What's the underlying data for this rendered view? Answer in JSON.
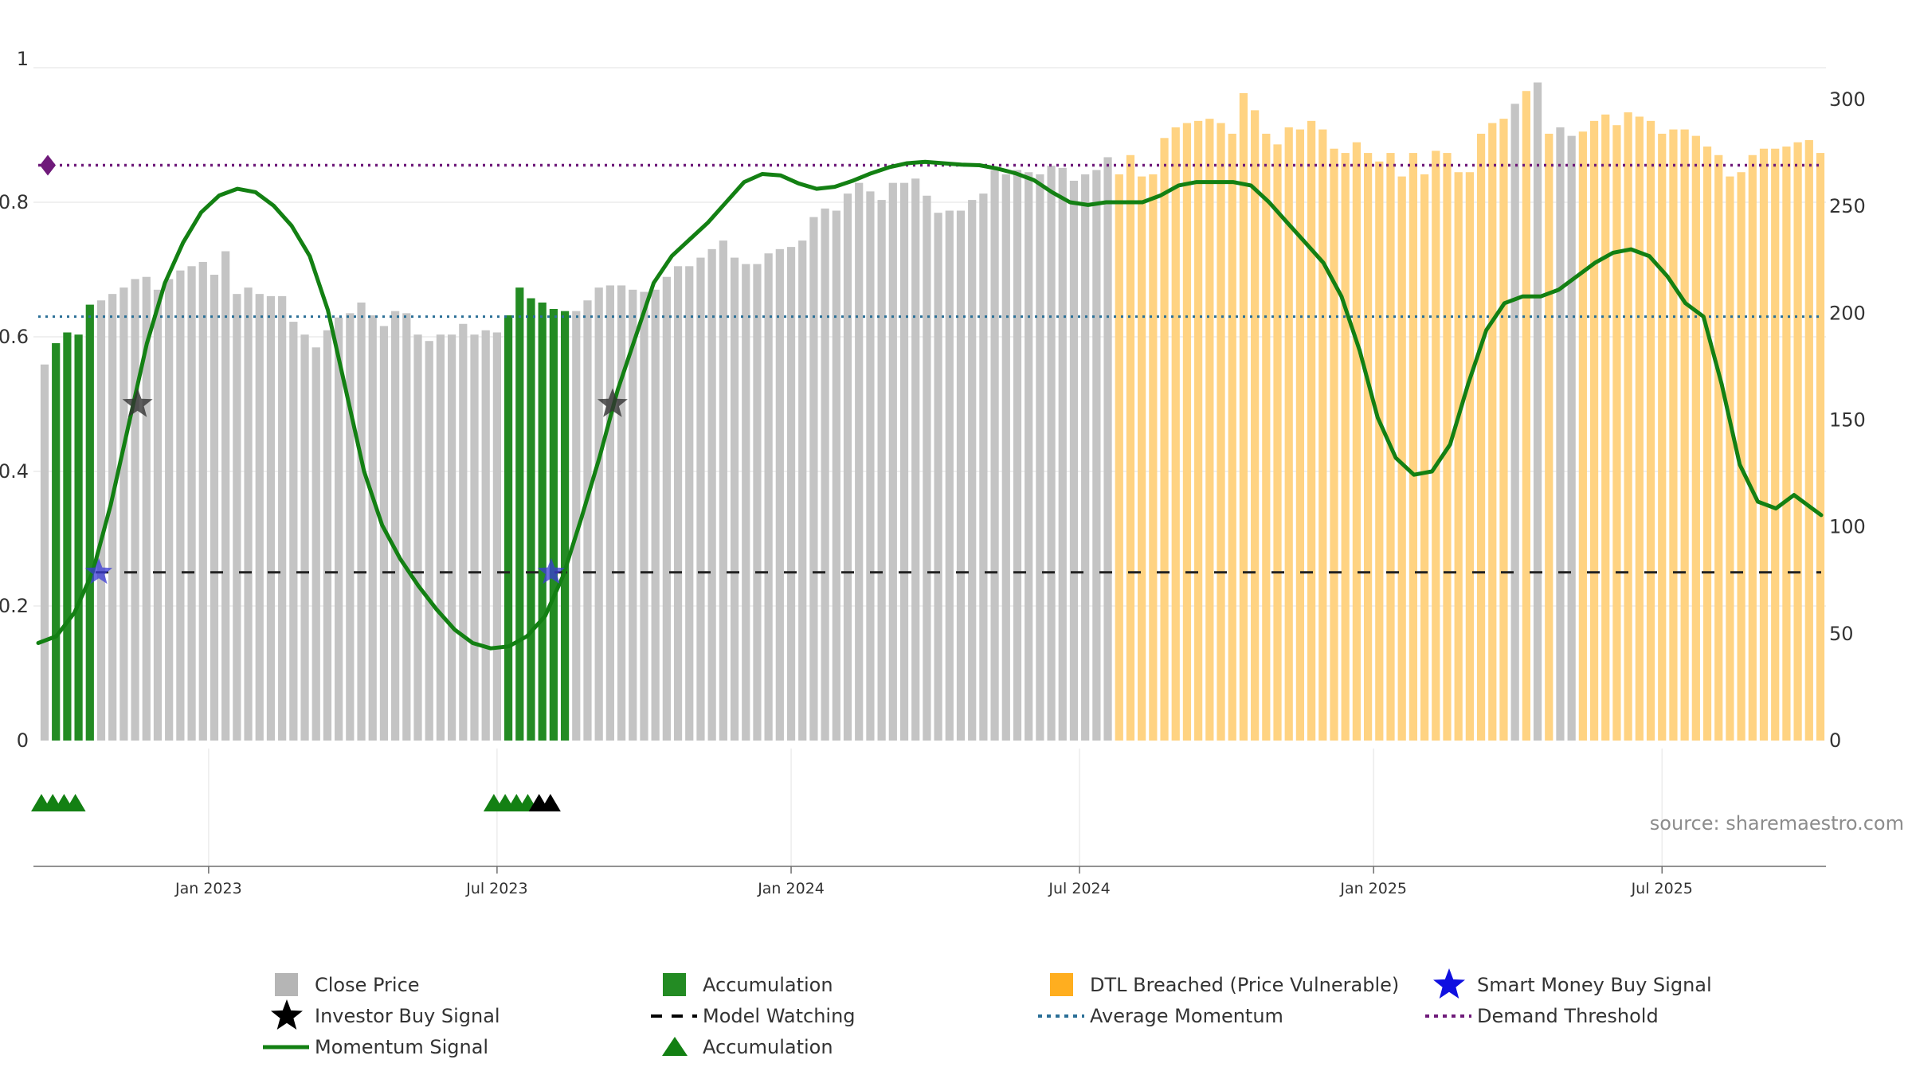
{
  "source": "source: sharemaestro.com",
  "colors": {
    "close": "#c4c4c4",
    "accumulation": "#238b23",
    "dtl": "#ffd382",
    "momentum": "#138013",
    "watching": "#222222",
    "average": "#2a6f97",
    "demand": "#6f1a7a",
    "smart": "#3b3bd6",
    "investor": "#333333"
  },
  "chart_data": {
    "type": "bar",
    "left_axis": {
      "ticks": [
        0,
        0.2,
        0.4,
        0.6,
        0.8,
        1
      ],
      "tick_labels": [
        "0",
        "0.2",
        "0.4",
        "0.6",
        "0.8",
        "1"
      ],
      "range": [
        0,
        1
      ]
    },
    "right_axis": {
      "ticks": [
        0,
        50,
        100,
        150,
        200,
        250,
        300
      ],
      "tick_labels": [
        "0",
        "50",
        "100",
        "150",
        "200",
        "250",
        "300"
      ],
      "range": [
        0,
        300
      ]
    },
    "x_axis": {
      "tick_labels": [
        "Jan 2023",
        "Jul 2023",
        "Jan 2024",
        "Jul 2024",
        "Jan 2025",
        "Jul 2025"
      ],
      "tick_week_index": [
        14.5,
        40,
        66,
        91.5,
        117.5,
        143
      ]
    },
    "close_prices": [
      176,
      186,
      191,
      190,
      204,
      206,
      209,
      212,
      216,
      217,
      211,
      216,
      220,
      222,
      224,
      218,
      229,
      209,
      212,
      209,
      208,
      208,
      196,
      190,
      184,
      192,
      198,
      200,
      205,
      199,
      194,
      201,
      200,
      190,
      187,
      190,
      190,
      195,
      190,
      192,
      191,
      199,
      212,
      207,
      205,
      202,
      201,
      201,
      206,
      212,
      213,
      213,
      211,
      210,
      211,
      217,
      222,
      222,
      226,
      230,
      234,
      226,
      223,
      223,
      228,
      230,
      231,
      234,
      245,
      249,
      248,
      256,
      261,
      257,
      253,
      261,
      261,
      263,
      255,
      247,
      248,
      248,
      253,
      256,
      267,
      265,
      267,
      266,
      265,
      269,
      268,
      262,
      265,
      267,
      273,
      265,
      274,
      264,
      265,
      282,
      287,
      289,
      290,
      291,
      289,
      284,
      303,
      295,
      284,
      279,
      287,
      286,
      290,
      286,
      277,
      275,
      280,
      275,
      271,
      275,
      264,
      275,
      265,
      276,
      275,
      266,
      266,
      284,
      289,
      291,
      298,
      304,
      308,
      284,
      287,
      283,
      285,
      290,
      293,
      288,
      294,
      292,
      290,
      284,
      286,
      286,
      283,
      278,
      274,
      264,
      266,
      274,
      277,
      277,
      278,
      280,
      281,
      275
    ],
    "bar_classes": "GAAAAGGGGGGGGGGGGGGGGGGGGGGGGGGGGGGGGGGGGAAAAAAGGGGGGGGGGGGGGGGGGGGGGGGGGGGGGGGGGGGGGGGGGGGGGGGDDDDDDDDDDDDDDDDDDDDDDDDDDDDDDDDDDDGDGDGGDDDDDDDDDDDDDDDDDDDDDDDDGGDDDDDDDDDD",
    "bar_class_legend": {
      "G": "Close Price",
      "A": "Accumulation",
      "D": "DTL Breached (Price Vulnerable)"
    },
    "momentum": [
      [
        0,
        0.145
      ],
      [
        2,
        0.155
      ],
      [
        4,
        0.19
      ],
      [
        6,
        0.25
      ],
      [
        8,
        0.35
      ],
      [
        10,
        0.47
      ],
      [
        12,
        0.59
      ],
      [
        14,
        0.68
      ],
      [
        16,
        0.74
      ],
      [
        18,
        0.785
      ],
      [
        20,
        0.81
      ],
      [
        22,
        0.82
      ],
      [
        24,
        0.815
      ],
      [
        26,
        0.795
      ],
      [
        28,
        0.765
      ],
      [
        30,
        0.72
      ],
      [
        32,
        0.64
      ],
      [
        34,
        0.52
      ],
      [
        36,
        0.4
      ],
      [
        38,
        0.32
      ],
      [
        40,
        0.27
      ],
      [
        42,
        0.23
      ],
      [
        44,
        0.195
      ],
      [
        46,
        0.165
      ],
      [
        48,
        0.145
      ],
      [
        50,
        0.137
      ],
      [
        52,
        0.14
      ],
      [
        54,
        0.155
      ],
      [
        56,
        0.185
      ],
      [
        58,
        0.245
      ],
      [
        60,
        0.33
      ],
      [
        62,
        0.42
      ],
      [
        64,
        0.52
      ],
      [
        66,
        0.6
      ],
      [
        68,
        0.68
      ],
      [
        70,
        0.72
      ],
      [
        72,
        0.745
      ],
      [
        74,
        0.77
      ],
      [
        76,
        0.8
      ],
      [
        78,
        0.83
      ],
      [
        80,
        0.842
      ],
      [
        82,
        0.84
      ],
      [
        84,
        0.828
      ],
      [
        86,
        0.82
      ],
      [
        88,
        0.823
      ],
      [
        90,
        0.832
      ],
      [
        92,
        0.843
      ],
      [
        94,
        0.852
      ],
      [
        96,
        0.858
      ],
      [
        98,
        0.86
      ],
      [
        100,
        0.858
      ],
      [
        102,
        0.856
      ],
      [
        104,
        0.855
      ],
      [
        106,
        0.85
      ],
      [
        108,
        0.843
      ],
      [
        110,
        0.833
      ],
      [
        112,
        0.815
      ],
      [
        114,
        0.8
      ],
      [
        116,
        0.796
      ],
      [
        118,
        0.8
      ],
      [
        120,
        0.8
      ],
      [
        122,
        0.8
      ],
      [
        124,
        0.81
      ],
      [
        126,
        0.825
      ],
      [
        128,
        0.83
      ],
      [
        130,
        0.83
      ],
      [
        132,
        0.83
      ],
      [
        134,
        0.825
      ],
      [
        136,
        0.8
      ],
      [
        138,
        0.77
      ],
      [
        140,
        0.74
      ],
      [
        142,
        0.71
      ],
      [
        144,
        0.66
      ],
      [
        146,
        0.58
      ],
      [
        148,
        0.48
      ],
      [
        150,
        0.42
      ],
      [
        152,
        0.395
      ],
      [
        154,
        0.4
      ],
      [
        156,
        0.44
      ],
      [
        158,
        0.53
      ],
      [
        160,
        0.61
      ],
      [
        162,
        0.65
      ],
      [
        164,
        0.66
      ],
      [
        166,
        0.66
      ],
      [
        168,
        0.67
      ],
      [
        170,
        0.69
      ],
      [
        172,
        0.71
      ],
      [
        174,
        0.725
      ],
      [
        176,
        0.73
      ],
      [
        178,
        0.72
      ],
      [
        180,
        0.69
      ],
      [
        182,
        0.65
      ],
      [
        184,
        0.63
      ],
      [
        186,
        0.53
      ],
      [
        188,
        0.41
      ],
      [
        190,
        0.355
      ],
      [
        192,
        0.345
      ],
      [
        194,
        0.365
      ],
      [
        196,
        0.345
      ],
      [
        197,
        0.335
      ]
    ],
    "momentum_weekly_scale": 0.8316,
    "average_momentum": 0.63,
    "model_watching": 0.25,
    "demand_threshold": 0.855,
    "smart_money_buy": [
      [
        5,
        0.25
      ],
      [
        45,
        0.25
      ]
    ],
    "investor_buy": [
      [
        8,
        0.5
      ],
      [
        50,
        0.5
      ]
    ],
    "accumulation_markers": [
      0,
      1,
      2,
      3,
      40,
      41,
      42,
      43
    ],
    "investor_markers": [
      44,
      45
    ],
    "legend": [
      "Close Price",
      "Accumulation",
      "DTL Breached (Price Vulnerable)",
      "Smart Money Buy Signal",
      "Investor Buy Signal",
      "Model Watching",
      "Average Momentum",
      "Demand Threshold",
      "Momentum Signal",
      "Accumulation"
    ]
  }
}
